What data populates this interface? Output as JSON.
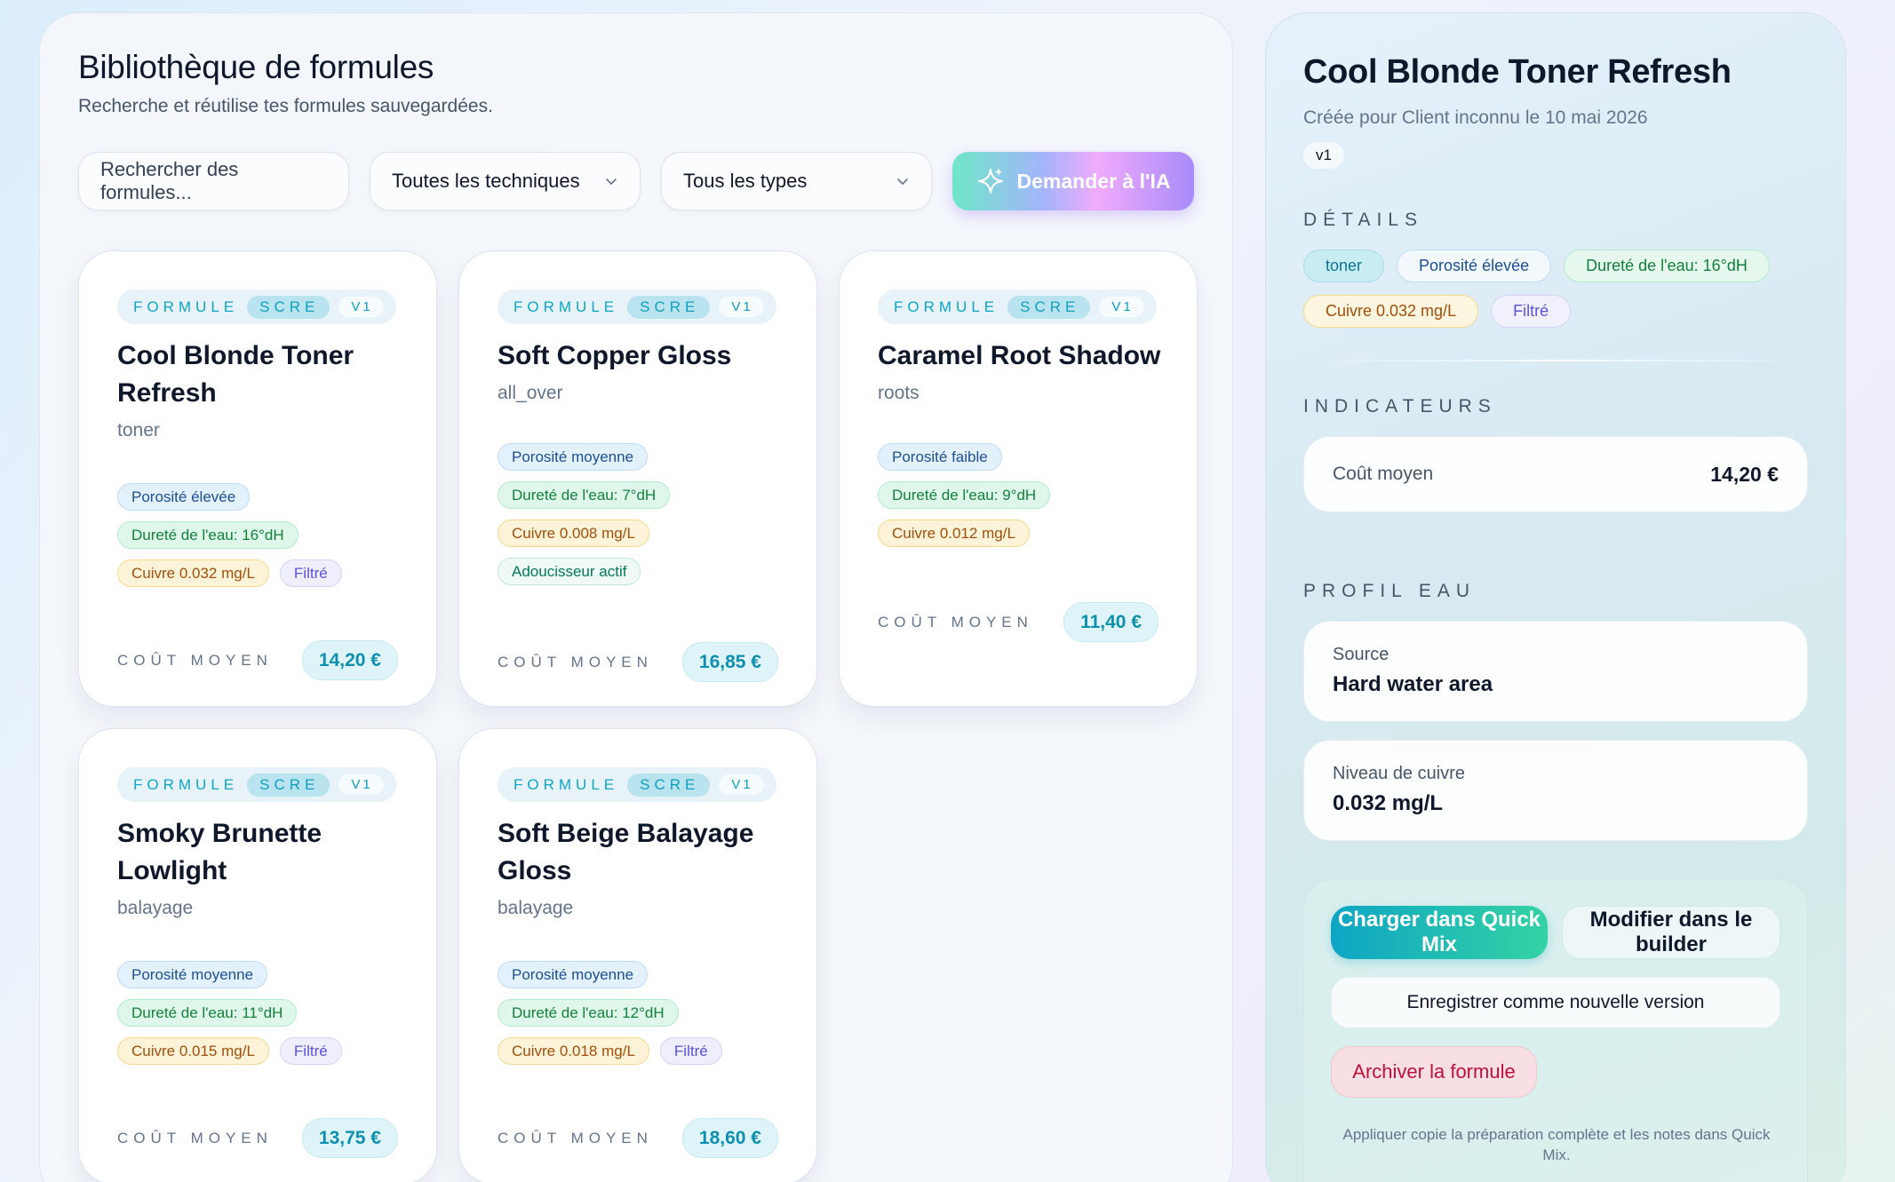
{
  "library": {
    "title": "Bibliothèque de formules",
    "subtitle": "Recherche et réutilise tes formules sauvegardées.",
    "search_placeholder": "Rechercher des formules...",
    "technique_filter": "Toutes les techniques",
    "type_filter": "Tous les types",
    "ai_button": "Demander à l'IA",
    "cost_label": "COÛT MOYEN",
    "tag_label": "FORMULE",
    "cards": [
      {
        "code": "SCRE",
        "version": "V1",
        "name": "Cool Blonde Toner Refresh",
        "technique": "toner",
        "chips": [
          "Porosité élevée",
          "Dureté de l'eau: 16°dH",
          "Cuivre 0.032 mg/L",
          "Filtré"
        ],
        "cost": "14,20 €"
      },
      {
        "code": "SCRE",
        "version": "V1",
        "name": "Soft Copper Gloss",
        "technique": "all_over",
        "chips": [
          "Porosité moyenne",
          "Dureté de l'eau: 7°dH",
          "Cuivre 0.008 mg/L",
          "Adoucisseur actif"
        ],
        "cost": "16,85 €"
      },
      {
        "code": "SCRE",
        "version": "V1",
        "name": "Caramel Root Shadow",
        "technique": "roots",
        "chips": [
          "Porosité faible",
          "Dureté de l'eau: 9°dH",
          "Cuivre 0.012 mg/L"
        ],
        "cost": "11,40 €"
      },
      {
        "code": "SCRE",
        "version": "V1",
        "name": "Smoky Brunette Lowlight",
        "technique": "balayage",
        "chips": [
          "Porosité moyenne",
          "Dureté de l'eau: 11°dH",
          "Cuivre 0.015 mg/L",
          "Filtré"
        ],
        "cost": "13,75 €"
      },
      {
        "code": "SCRE",
        "version": "V1",
        "name": "Soft Beige Balayage Gloss",
        "technique": "balayage",
        "chips": [
          "Porosité moyenne",
          "Dureté de l'eau: 12°dH",
          "Cuivre 0.018 mg/L",
          "Filtré"
        ],
        "cost": "18,60 €"
      }
    ]
  },
  "detail": {
    "title": "Cool Blonde Toner Refresh",
    "subtitle": "Créée pour Client inconnu le 10 mai 2026",
    "version": "v1",
    "details_heading": "DÉTAILS",
    "detail_chips": [
      "toner",
      "Porosité élevée",
      "Dureté de l'eau: 16°dH",
      "Cuivre 0.032 mg/L",
      "Filtré"
    ],
    "indicators_heading": "INDICATEURS",
    "avg_cost_label": "Coût moyen",
    "avg_cost_value": "14,20 €",
    "water_heading": "PROFIL EAU",
    "source_label": "Source",
    "source_value": "Hard water area",
    "copper_label": "Niveau de cuivre",
    "copper_value": "0.032 mg/L",
    "load_button": "Charger dans Quick Mix",
    "edit_button": "Modifier dans le builder",
    "save_button": "Enregistrer comme nouvelle version",
    "archive_button": "Archiver la formule",
    "hint": "Appliquer copie la préparation complète et les notes dans Quick Mix."
  },
  "colors": {
    "accent_teal": "#0ea5c4",
    "accent_violet": "#a78bfa",
    "danger": "#be123c"
  }
}
